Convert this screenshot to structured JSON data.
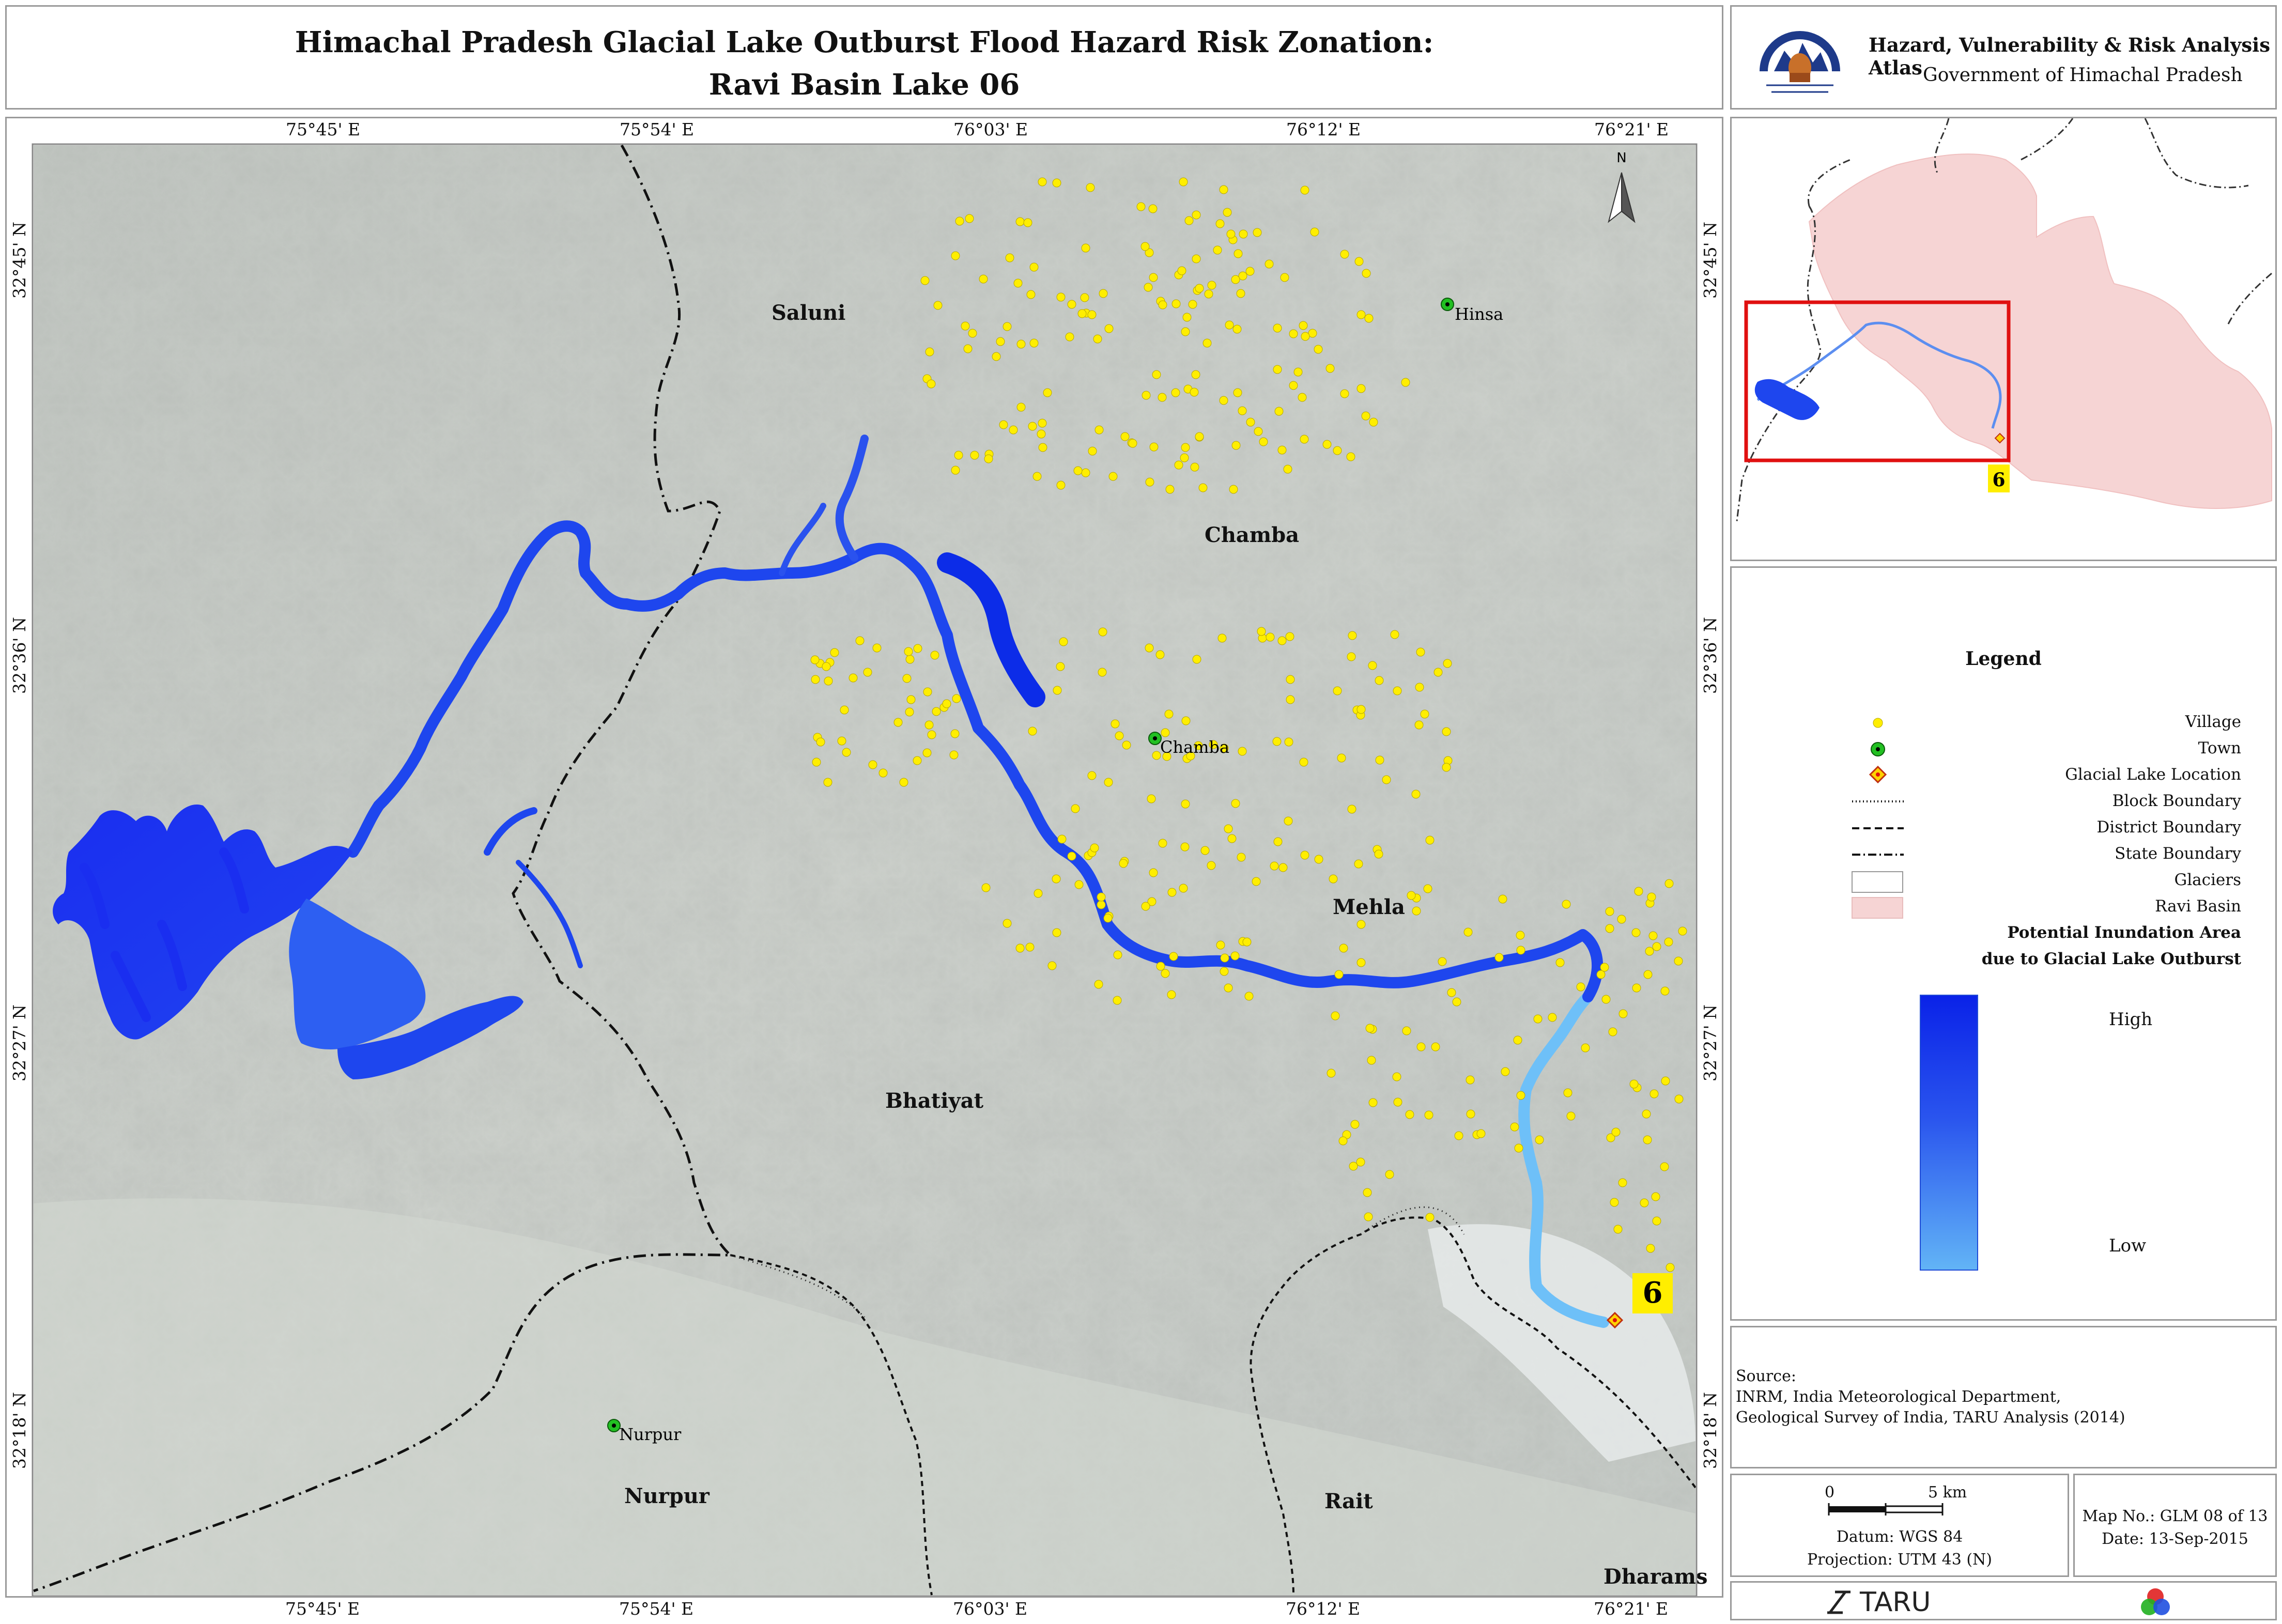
{
  "title": {
    "line1": "Himachal Pradesh Glacial Lake Outburst Flood Hazard Risk Zonation:",
    "line2": "Ravi Basin Lake 06"
  },
  "atlas": {
    "title": "Hazard, Vulnerability & Risk Analysis Atlas",
    "subtitle": "Government of Himachal Pradesh",
    "logo_icon": "himachal-emblem-icon"
  },
  "map": {
    "north_label": "N",
    "lon_ticks": [
      "75°45' E",
      "75°54' E",
      "76°03' E",
      "76°12' E",
      "76°21' E"
    ],
    "lat_ticks": [
      "32°45' N",
      "32°36' N",
      "32°27' N",
      "32°18' N"
    ],
    "block_labels": [
      "Saluni",
      "Chamba",
      "Mehla",
      "Bhatiyat",
      "Nurpur",
      "Rait",
      "Dharams"
    ],
    "town_labels": [
      "Hinsa",
      "Chamba",
      "Nurpur"
    ],
    "lake_number": "6",
    "colors": {
      "village": "#ffee00",
      "town": "#22c022",
      "flood_high": "#0a22e8",
      "flood_low": "#62b4f6",
      "lake_marker": "#ffd200",
      "basin": "#f6d4d4"
    }
  },
  "inset": {
    "lake_number": "6",
    "frame_color": "#e01010"
  },
  "legend": {
    "title": "Legend",
    "items": [
      "Village",
      "Town",
      "Glacial Lake Location",
      "Block Boundary",
      "District Boundary",
      "State Boundary",
      "Glaciers",
      "Ravi Basin"
    ],
    "inundation_title_1": "Potential Inundation Area",
    "inundation_title_2": "due to Glacial Lake Outburst",
    "high": "High",
    "low": "Low"
  },
  "source": {
    "heading": "Source:",
    "line1": "INRM, India Meteorological Department,",
    "line2": "Geological Survey of India, TARU Analysis (2014)"
  },
  "scale": {
    "zero": "0",
    "five": "5 km",
    "datum": "Datum: WGS 84",
    "projection": "Projection: UTM 43 (N)"
  },
  "mapinfo": {
    "map_no": "Map No.: GLM 08 of 13",
    "date": "Date: 13-Sep-2015"
  },
  "footer": {
    "taru": "TARU",
    "taru_icon": "taru-logo-icon",
    "rgb_icon": "rgb-circles-icon"
  }
}
